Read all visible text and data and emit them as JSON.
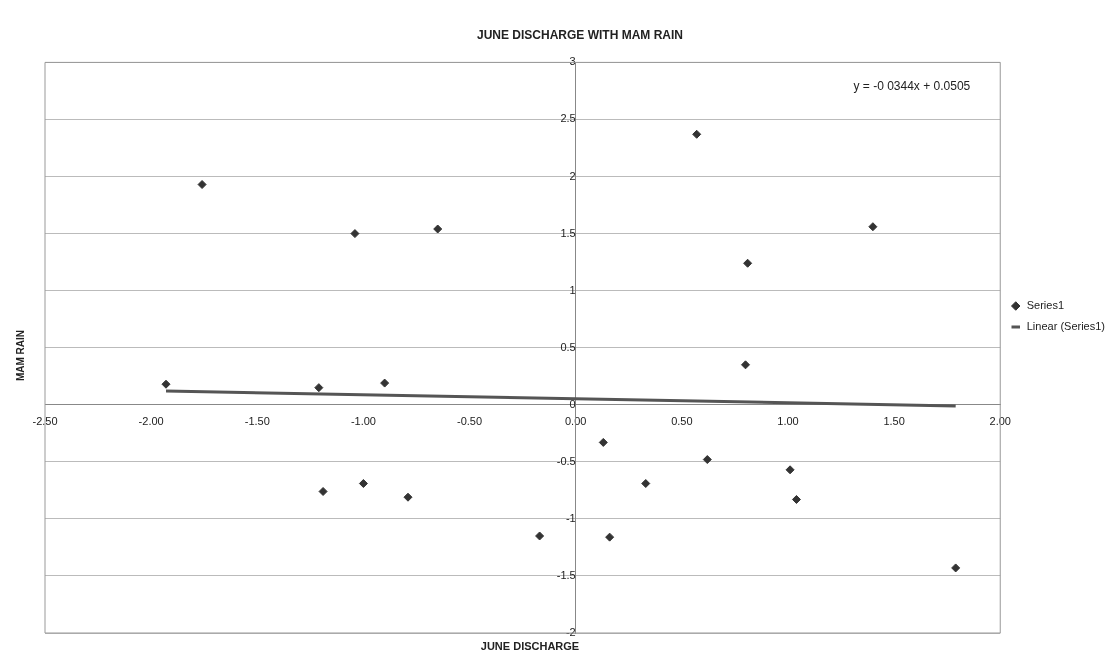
{
  "chart_data": {
    "type": "scatter",
    "title": "JUNE DISCHARGE WITH MAM RAIN",
    "xlabel": "JUNE DISCHARGE",
    "ylabel": "MAM RAIN",
    "annotations": [
      "y = -0 0344x + 0.0505"
    ],
    "series": [
      {
        "name": "Series1",
        "type": "scatter",
        "color": "#333333",
        "marker": "diamond",
        "x": [
          -1.93,
          -1.21,
          -0.9,
          -1.04,
          -0.65,
          -1.76,
          0.57,
          1.4,
          0.81,
          0.8,
          -1.19,
          -1.0,
          -0.79,
          -0.17,
          0.13,
          0.62,
          1.01,
          0.33,
          1.04,
          0.16,
          1.79
        ],
        "values": [
          0.18,
          0.15,
          0.19,
          1.5,
          1.54,
          1.93,
          2.37,
          1.56,
          1.24,
          0.35,
          -0.76,
          -0.69,
          -0.81,
          -1.15,
          -0.33,
          -0.48,
          -0.57,
          -0.69,
          -0.83,
          -1.16,
          -1.43
        ]
      },
      {
        "name": "Linear (Series1)",
        "type": "line",
        "color": "#555555",
        "marker": "none",
        "line_style": "solid",
        "x": [
          -1.93,
          1.79
        ],
        "values": [
          0.12,
          -0.01
        ]
      }
    ],
    "xlim": [
      -2.5,
      2.0
    ],
    "ylim": [
      -2,
      3
    ],
    "xticks": [
      {
        "value": -2.5,
        "label": "-2.50"
      },
      {
        "value": -2,
        "label": "-2.00"
      },
      {
        "value": -1.5,
        "label": "-1.50"
      },
      {
        "value": -1,
        "label": "-1.00"
      },
      {
        "value": -0.5,
        "label": "-0.50"
      },
      {
        "value": 0,
        "label": "0.00"
      },
      {
        "value": 0.5,
        "label": "0.50"
      },
      {
        "value": 1,
        "label": "1.00"
      },
      {
        "value": 1.5,
        "label": "1.50"
      },
      {
        "value": 2,
        "label": "2.00"
      }
    ],
    "yticks": [
      -2,
      -1.5,
      -1,
      -0.5,
      0,
      0.5,
      1,
      1.5,
      2,
      2.5,
      3
    ],
    "grid": "y",
    "legend": "right"
  }
}
